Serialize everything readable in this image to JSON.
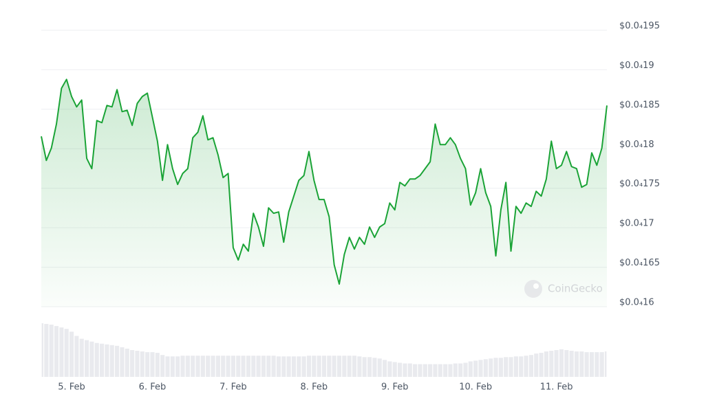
{
  "chart_data": {
    "type": "line",
    "categories": [
      null,
      null,
      null,
      null,
      null,
      null,
      "5. Feb",
      null,
      null,
      null,
      null,
      null,
      null,
      null,
      null,
      null,
      null,
      null,
      null,
      null,
      null,
      null,
      "6. Feb",
      null,
      null,
      null,
      null,
      null,
      null,
      null,
      null,
      null,
      null,
      null,
      null,
      null,
      null,
      null,
      "7. Feb",
      null,
      null,
      null,
      null,
      null,
      null,
      null,
      null,
      null,
      null,
      null,
      null,
      null,
      null,
      null,
      "8. Feb",
      null,
      null,
      null,
      null,
      null,
      null,
      null,
      null,
      null,
      null,
      null,
      null,
      null,
      null,
      null,
      "9. Feb",
      null,
      null,
      null,
      null,
      null,
      null,
      null,
      null,
      null,
      null,
      null,
      null,
      null,
      null,
      null,
      "10. Feb",
      null,
      null,
      null,
      null,
      null,
      null,
      null,
      null,
      null,
      null,
      null,
      null,
      null,
      null,
      null,
      "11. Feb",
      null,
      null,
      null,
      null,
      null,
      null,
      null,
      null,
      null,
      null
    ],
    "values": [
      1.8157e-05,
      1.7852e-05,
      1.8009e-05,
      1.8313e-05,
      1.8765e-05,
      1.8878e-05,
      1.8661e-05,
      1.853e-05,
      1.8617e-05,
      1.7878e-05,
      1.7748e-05,
      1.8357e-05,
      1.833e-05,
      1.8548e-05,
      1.853e-05,
      1.8748e-05,
      1.847e-05,
      1.8487e-05,
      1.8296e-05,
      1.8574e-05,
      1.8661e-05,
      1.8704e-05,
      1.84e-05,
      1.8096e-05,
      1.76e-05,
      1.8052e-05,
      1.7748e-05,
      1.7548e-05,
      1.7687e-05,
      1.7748e-05,
      1.8139e-05,
      1.8209e-05,
      1.8417e-05,
      1.8113e-05,
      1.8139e-05,
      1.7922e-05,
      1.7635e-05,
      1.7687e-05,
      1.6748e-05,
      1.6591e-05,
      1.6791e-05,
      1.6704e-05,
      1.7183e-05,
      1.7009e-05,
      1.6765e-05,
      1.7252e-05,
      1.7183e-05,
      1.72e-05,
      1.6817e-05,
      1.72e-05,
      1.74e-05,
      1.76e-05,
      1.7661e-05,
      1.7965e-05,
      1.76e-05,
      1.7357e-05,
      1.7357e-05,
      1.7139e-05,
      1.653e-05,
      1.6287e-05,
      1.6661e-05,
      1.6878e-05,
      1.673e-05,
      1.6878e-05,
      1.6791e-05,
      1.7009e-05,
      1.6878e-05,
      1.7009e-05,
      1.7052e-05,
      1.7313e-05,
      1.7226e-05,
      1.7574e-05,
      1.753e-05,
      1.7617e-05,
      1.7617e-05,
      1.7661e-05,
      1.7748e-05,
      1.7835e-05,
      1.8313e-05,
      1.8052e-05,
      1.8052e-05,
      1.8139e-05,
      1.8052e-05,
      1.7878e-05,
      1.7748e-05,
      1.7287e-05,
      1.7443e-05,
      1.7748e-05,
      1.7443e-05,
      1.727e-05,
      1.6643e-05,
      1.7226e-05,
      1.7574e-05,
      1.6704e-05,
      1.727e-05,
      1.7183e-05,
      1.7313e-05,
      1.727e-05,
      1.7461e-05,
      1.74e-05,
      1.7617e-05,
      1.8096e-05,
      1.7748e-05,
      1.7791e-05,
      1.7965e-05,
      1.7774e-05,
      1.7748e-05,
      1.7513e-05,
      1.7548e-05,
      1.7948e-05,
      1.7791e-05,
      1.8009e-05,
      1.8548e-05
    ],
    "color": "#1aa336",
    "ylim": [
      1.6e-05,
      1.95e-05
    ],
    "yticks": [
      {
        "value": 1.6e-05,
        "label": "$0.0₄16"
      },
      {
        "value": 1.65e-05,
        "label": "$0.0₄165"
      },
      {
        "value": 1.7e-05,
        "label": "$0.0₄17"
      },
      {
        "value": 1.75e-05,
        "label": "$0.0₄175"
      },
      {
        "value": 1.8e-05,
        "label": "$0.0₄18"
      },
      {
        "value": 1.85e-05,
        "label": "$0.0₄185"
      },
      {
        "value": 1.9e-05,
        "label": "$0.0₄19"
      },
      {
        "value": 1.95e-05,
        "label": "$0.0₄195"
      }
    ],
    "grid": true,
    "watermark": "CoinGecko",
    "volume": {
      "color": "#e9eaee",
      "values": [
        76,
        75,
        74,
        72,
        70,
        68,
        64,
        58,
        54,
        52,
        50,
        48,
        47,
        46,
        45,
        44,
        42,
        40,
        38,
        37,
        36,
        35,
        35,
        34,
        31,
        29,
        29,
        29,
        30,
        30,
        30,
        30,
        30,
        30,
        30,
        30,
        30,
        30,
        30,
        30,
        30,
        30,
        30,
        30,
        30,
        30,
        30,
        29,
        29,
        29,
        29,
        29,
        29,
        30,
        30,
        30,
        30,
        30,
        30,
        30,
        30,
        30,
        30,
        29,
        28,
        28,
        27,
        26,
        24,
        22,
        21,
        20,
        19,
        19,
        18,
        18,
        18,
        18,
        18,
        18,
        18,
        18,
        19,
        19,
        20,
        22,
        23,
        24,
        25,
        26,
        27,
        27,
        28,
        28,
        29,
        29,
        30,
        31,
        33,
        34,
        36,
        37,
        38,
        39,
        38,
        37,
        36,
        36,
        35,
        35,
        35,
        35,
        36
      ]
    }
  }
}
